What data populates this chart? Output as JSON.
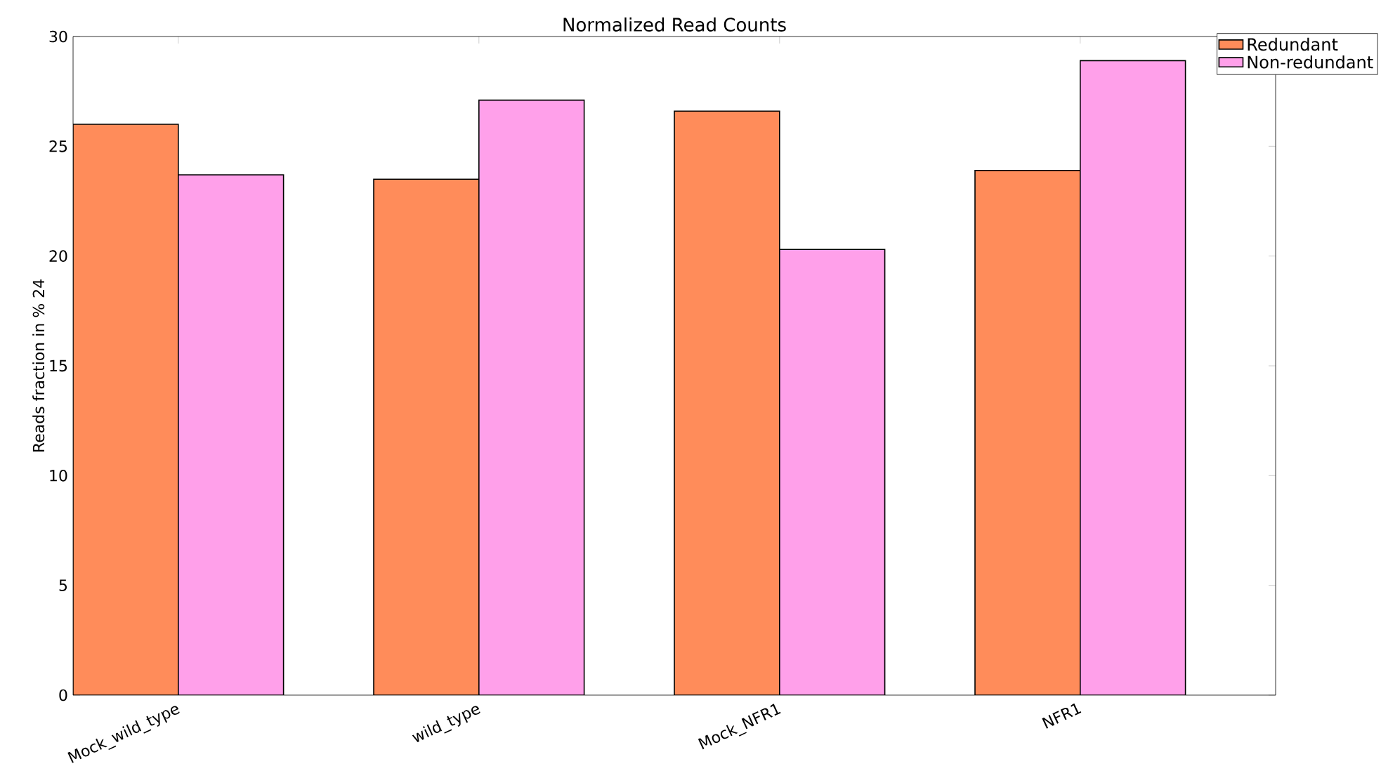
{
  "chart_data": {
    "type": "bar",
    "title": "Normalized Read Counts",
    "ylabel": "Reads fraction in % 24",
    "categories": [
      "Mock_wild_type",
      "wild_type",
      "Mock_NFR1",
      "NFR1"
    ],
    "series": [
      {
        "name": "Redundant",
        "color": "#ff8c5a",
        "values": [
          26.0,
          23.5,
          26.6,
          23.9
        ]
      },
      {
        "name": "Non-redundant",
        "color": "#ffa0ea",
        "values": [
          23.7,
          27.1,
          20.3,
          28.9
        ]
      }
    ],
    "ylim": [
      0,
      30
    ],
    "yticks": [
      0,
      5,
      10,
      15,
      20,
      25,
      30
    ],
    "grid": false,
    "legend": "top right"
  }
}
